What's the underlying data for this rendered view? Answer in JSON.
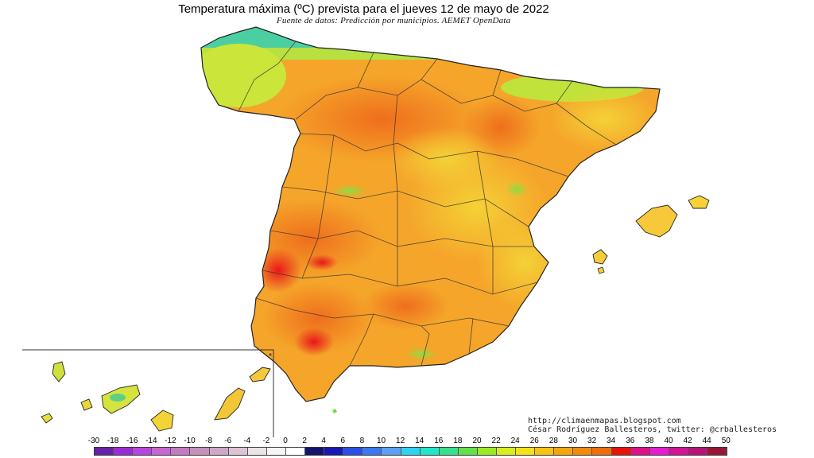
{
  "title": "Temperatura máxima (ºC) prevista para el jueves 12 de mayo de 2022",
  "subtitle": "Fuente de datos: Predicción por municipios. AEMET OpenData",
  "credits": {
    "url": "http://climaenmapas.blogspot.com",
    "author": "César Rodríguez Ballesteros, twitter: @crballesteros"
  },
  "legend": {
    "ticks": [
      "-30",
      "-18",
      "-16",
      "-14",
      "-12",
      "-10",
      "-8",
      "-6",
      "-4",
      "-2",
      "0",
      "2",
      "4",
      "6",
      "8",
      "10",
      "12",
      "14",
      "16",
      "18",
      "20",
      "22",
      "24",
      "26",
      "28",
      "30",
      "32",
      "34",
      "36",
      "38",
      "40",
      "42",
      "44",
      "50"
    ],
    "colors": [
      "#6a1fa8",
      "#9b2bd6",
      "#b844e0",
      "#c765d2",
      "#c27ac2",
      "#c58fbe",
      "#cfa7c9",
      "#dec3d6",
      "#ece3e6",
      "#f6f4f6",
      "#ffffff",
      "#14146e",
      "#1818b2",
      "#2a4fe6",
      "#3c78f0",
      "#5aa0f4",
      "#2ed2f2",
      "#22e6c8",
      "#36e08c",
      "#64e04a",
      "#9cea26",
      "#d8ee1e",
      "#f6e21a",
      "#f8c414",
      "#f6a50e",
      "#f28a0c",
      "#ee6e0a",
      "#ea1208",
      "#e0108a",
      "#e41ed0",
      "#d41298",
      "#b8127a",
      "#9a1438"
    ]
  },
  "colors": {
    "hot_spot": "#e8161a",
    "warm": "#f5a023",
    "mild": "#f6cf33",
    "cool": "#c8e438",
    "green": "#7ed84a",
    "coast_cool": "#3cc8a0",
    "border": "#222222"
  }
}
